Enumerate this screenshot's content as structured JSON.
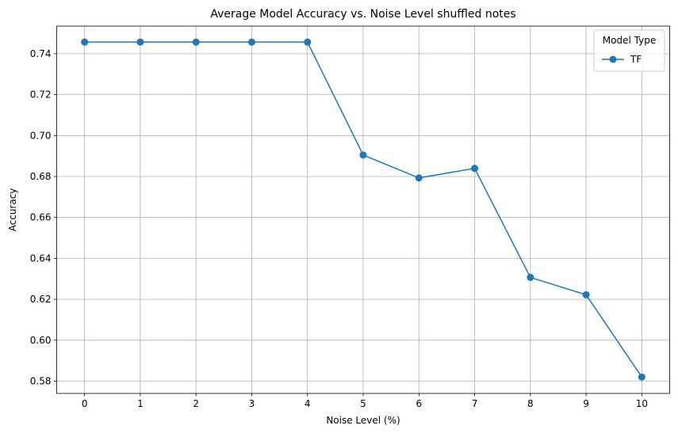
{
  "chart_data": {
    "type": "line",
    "title": "Average Model Accuracy vs. Noise Level shuffled notes",
    "xlabel": "Noise Level (%)",
    "ylabel": "Accuracy",
    "x": [
      0,
      1,
      2,
      3,
      4,
      5,
      6,
      7,
      8,
      9,
      10
    ],
    "x_ticks": [
      "0",
      "1",
      "2",
      "3",
      "4",
      "5",
      "6",
      "7",
      "8",
      "9",
      "10"
    ],
    "y_ticks": [
      "0.58",
      "0.60",
      "0.62",
      "0.64",
      "0.66",
      "0.68",
      "0.70",
      "0.72",
      "0.74"
    ],
    "xlim": [
      -0.5,
      10.5
    ],
    "ylim": [
      0.574,
      0.7535
    ],
    "grid": true,
    "legend": {
      "title": "Model Type",
      "placement": "top-right"
    },
    "series": [
      {
        "name": "TF",
        "color": "#1f77b4",
        "marker": "circle",
        "values": [
          0.7457,
          0.7457,
          0.7457,
          0.7457,
          0.7457,
          0.6905,
          0.6793,
          0.684,
          0.6307,
          0.6222,
          0.582
        ]
      }
    ]
  }
}
